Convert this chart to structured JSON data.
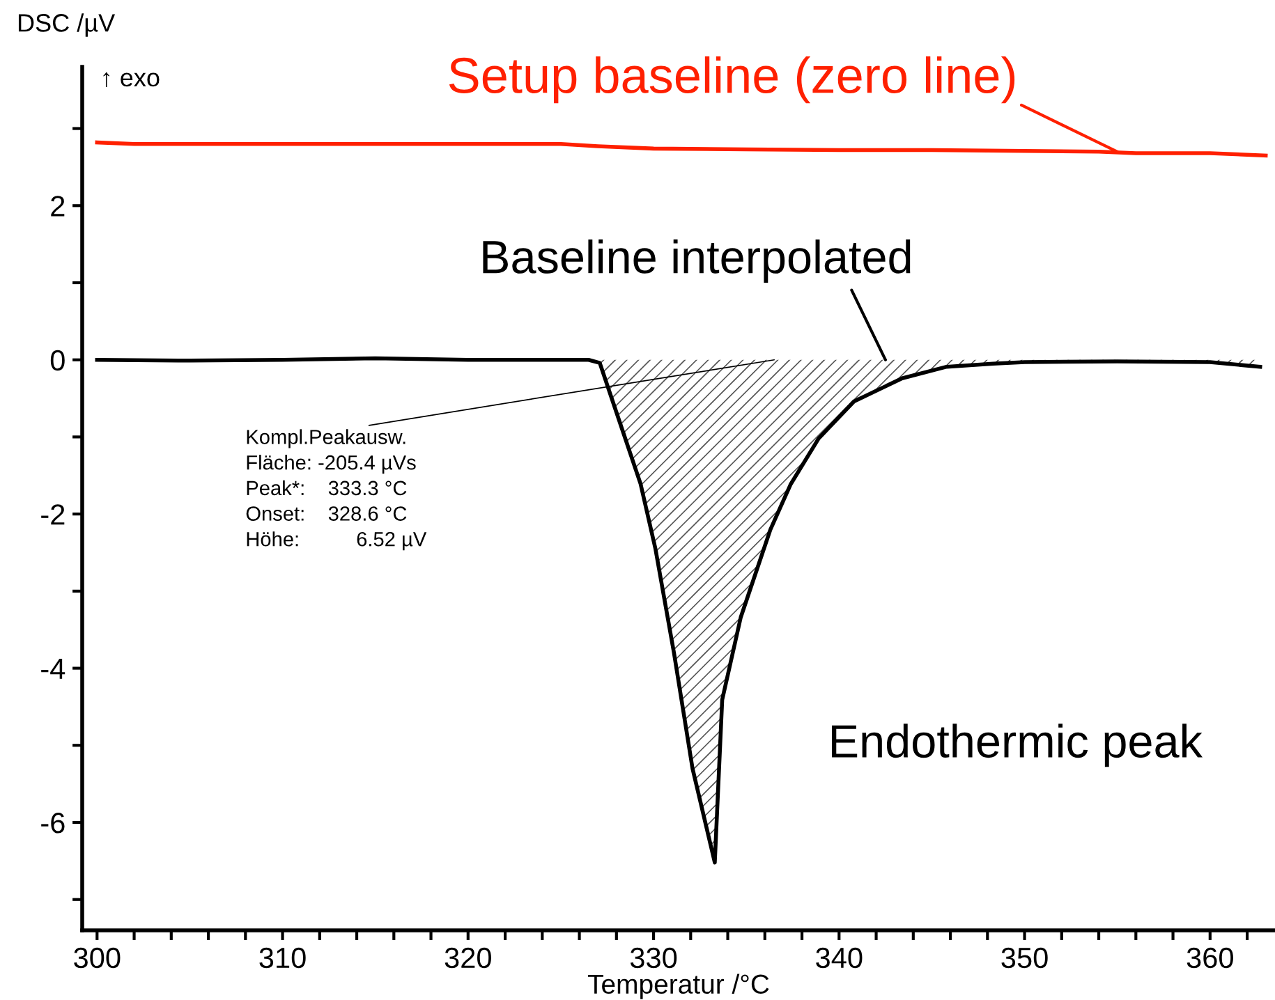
{
  "chart_data": {
    "type": "line",
    "xlabel": "Temperatur /°C",
    "ylabel": "DSC /µV",
    "xlim": [
      299.2,
      363.5
    ],
    "ylim": [
      -7.4,
      3.8
    ],
    "xticks": [
      300,
      {
        "value": 302,
        "label": null
      },
      {
        "value": 304,
        "label": null
      },
      {
        "value": 306,
        "label": null
      },
      {
        "value": 308,
        "label": null
      },
      310,
      {
        "value": 312,
        "label": null
      },
      {
        "value": 314,
        "label": null
      },
      {
        "value": 316,
        "label": null
      },
      {
        "value": 318,
        "label": null
      },
      320,
      {
        "value": 322,
        "label": null
      },
      {
        "value": 324,
        "label": null
      },
      {
        "value": 326,
        "label": null
      },
      {
        "value": 328,
        "label": null
      },
      330,
      {
        "value": 332,
        "label": null
      },
      {
        "value": 334,
        "label": null
      },
      {
        "value": 336,
        "label": null
      },
      {
        "value": 338,
        "label": null
      },
      340,
      {
        "value": 342,
        "label": null
      },
      {
        "value": 344,
        "label": null
      },
      {
        "value": 346,
        "label": null
      },
      {
        "value": 348,
        "label": null
      },
      350,
      {
        "value": 352,
        "label": null
      },
      {
        "value": 354,
        "label": null
      },
      {
        "value": 356,
        "label": null
      },
      {
        "value": 358,
        "label": null
      },
      360,
      {
        "value": 362,
        "label": null
      }
    ],
    "yticks": [
      {
        "value": -7,
        "label": null
      },
      -6,
      {
        "value": -5,
        "label": null
      },
      -4,
      {
        "value": -3,
        "label": null
      },
      -2,
      {
        "value": -1,
        "label": null
      },
      0,
      {
        "value": 1,
        "label": null
      },
      2,
      {
        "value": 3,
        "label": null
      }
    ],
    "grid": false,
    "legend": false,
    "series": [
      {
        "color": "#ff2000",
        "x": [
          300,
          302,
          310,
          320,
          325,
          327,
          330,
          335,
          340,
          345,
          350,
          354,
          356,
          360,
          363
        ],
        "values": [
          2.82,
          2.8,
          2.8,
          2.8,
          2.8,
          2.77,
          2.74,
          2.73,
          2.72,
          2.72,
          2.71,
          2.7,
          2.68,
          2.68,
          2.65
        ]
      },
      {
        "type": "area",
        "color": "#000000",
        "x": [
          300,
          305,
          310,
          315,
          320,
          324,
          326.5,
          327.1,
          327.8,
          329.3,
          330.1,
          331.1,
          332.1,
          333.3,
          333.7,
          334.7,
          336.3,
          337.4,
          338.9,
          340.8,
          343.4,
          345.8,
          348.3,
          350,
          355,
          360,
          362.7
        ],
        "values": [
          0,
          -0.01,
          0,
          0.02,
          0,
          0,
          0,
          -0.04,
          -0.54,
          -1.61,
          -2.45,
          -3.8,
          -5.3,
          -6.52,
          -4.41,
          -3.34,
          -2.2,
          -1.61,
          -1.02,
          -0.54,
          -0.24,
          -0.09,
          -0.05,
          -0.03,
          -0.02,
          -0.03,
          -0.09
        ]
      }
    ],
    "annotations": [
      "↑ exo",
      {
        "text": "Setup baseline (zero line)",
        "x": 355,
        "y": 2.7
      },
      {
        "text": "Baseline interpolated",
        "x": 342.5,
        "y": 0
      },
      {
        "text": "Kompl.Peakausw.\nFläche: -205.4 µVs\nPeak*:    333.3 °C\nOnset:    328.6 °C\nHöhe:          6.52 µV",
        "x": 336.5,
        "y": 0
      },
      "Endothermic peak"
    ]
  }
}
